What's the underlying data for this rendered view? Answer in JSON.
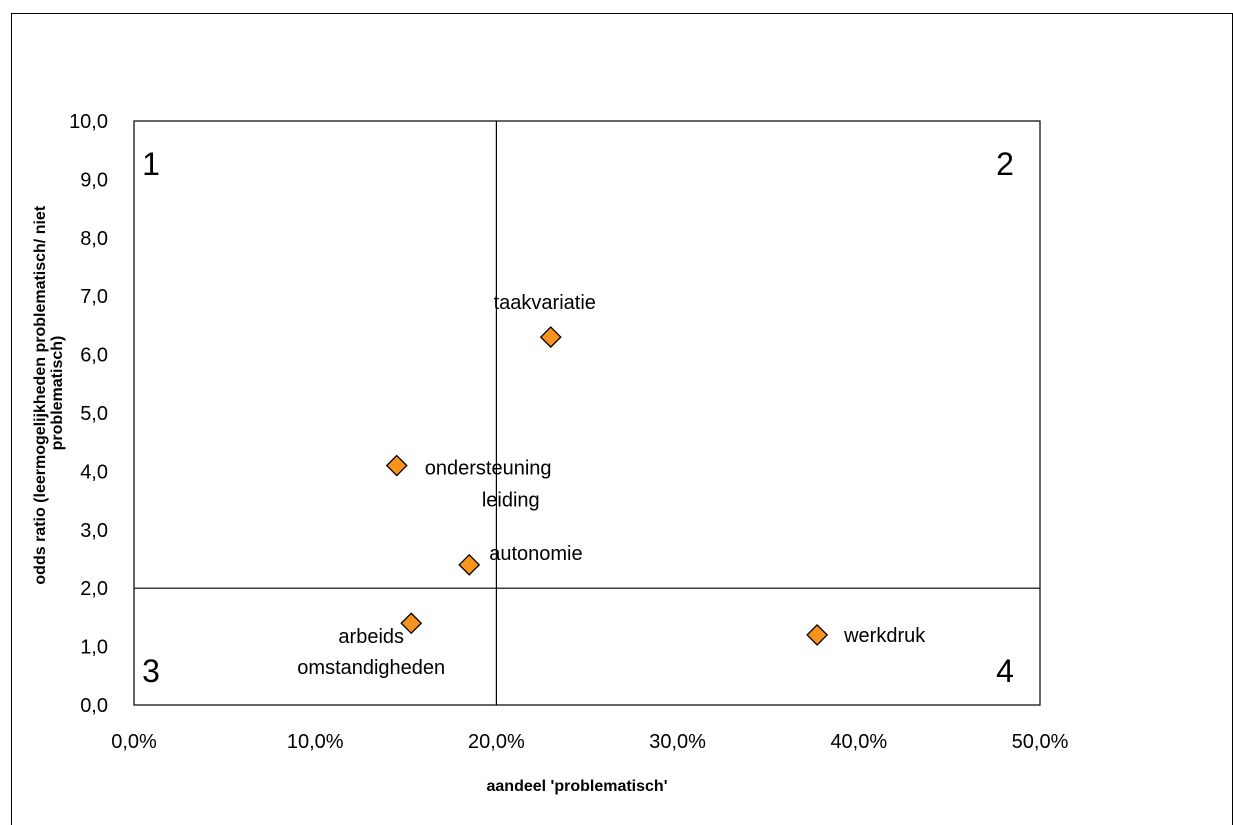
{
  "chart_data": {
    "type": "scatter",
    "xlabel": "aandeel 'problematisch'",
    "ylabel_lines": [
      "odds ratio (leermogelijkheden problematisch/ niet",
      "problematisch)"
    ],
    "xlim": [
      0,
      0.5
    ],
    "ylim": [
      0,
      10
    ],
    "x_ticks": [
      "0,0%",
      "10,0%",
      "20,0%",
      "30,0%",
      "40,0%",
      "50,0%"
    ],
    "y_ticks": [
      "0,0",
      "1,0",
      "2,0",
      "3,0",
      "4,0",
      "5,0",
      "6,0",
      "7,0",
      "8,0",
      "9,0",
      "10,0"
    ],
    "reference_lines": {
      "x": 0.2,
      "y": 2.0
    },
    "quadrant_labels": [
      "1",
      "2",
      "3",
      "4"
    ],
    "grid": false,
    "marker_color": "#F7941D",
    "points": [
      {
        "label_lines": [
          "taakvariatie"
        ],
        "x": 0.23,
        "y": 6.3
      },
      {
        "label_lines": [
          "ondersteuning",
          "leiding"
        ],
        "x": 0.145,
        "y": 4.1
      },
      {
        "label_lines": [
          "autonomie"
        ],
        "x": 0.185,
        "y": 2.4
      },
      {
        "label_lines": [
          "arbeids",
          "omstandigheden"
        ],
        "x": 0.153,
        "y": 1.4
      },
      {
        "label_lines": [
          "werkdruk"
        ],
        "x": 0.377,
        "y": 1.2
      }
    ]
  }
}
